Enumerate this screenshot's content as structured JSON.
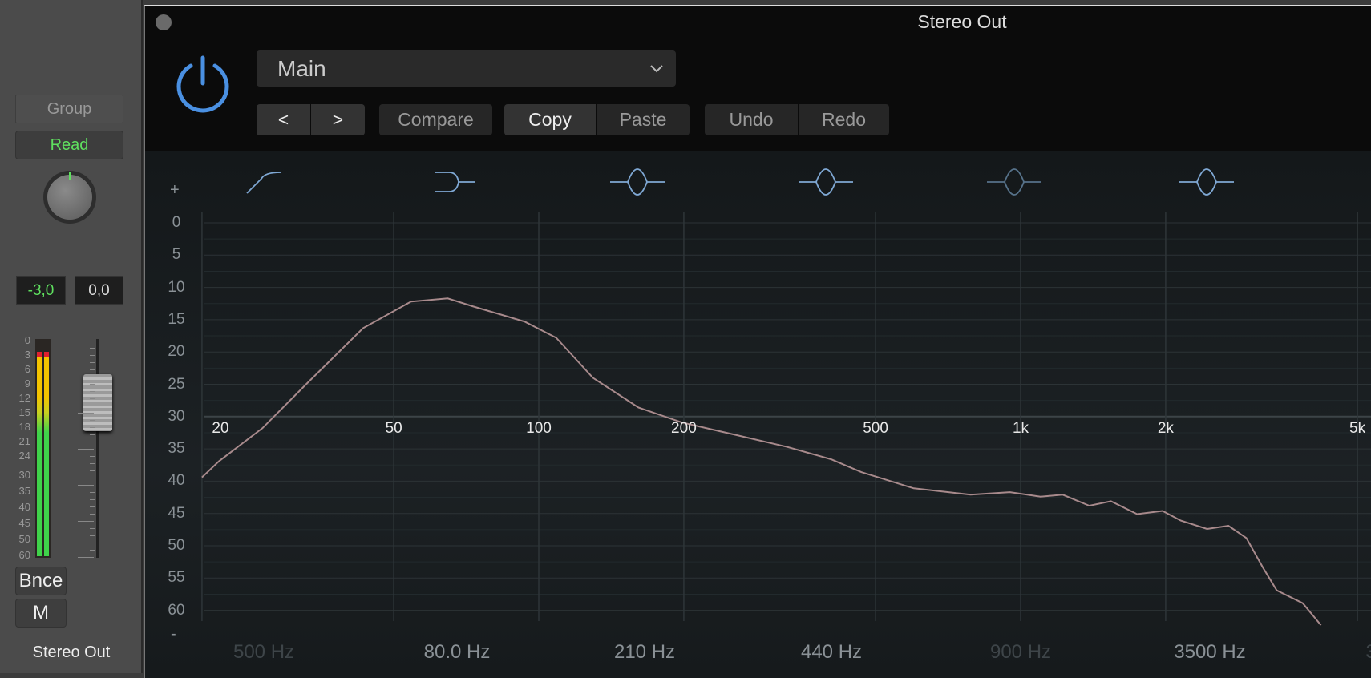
{
  "channel_strip": {
    "group_label": "Group",
    "automation_label": "Read",
    "pan_value": "-3,0",
    "volume_value": "0,0",
    "meter_scale": [
      "0",
      "3",
      "6",
      "9",
      "12",
      "15",
      "18",
      "21",
      "24",
      "30",
      "35",
      "40",
      "45",
      "50",
      "60"
    ],
    "bounce_label": "Bnce",
    "mute_label": "M",
    "channel_name": "Stereo Out",
    "colors": {
      "meter_green": "#3fd24a",
      "meter_yellow": "#f5c400",
      "meter_clip": "#e02030",
      "read_text": "#5fe05f"
    }
  },
  "plugin": {
    "window_title": "Stereo Out",
    "power_icon": "power-icon",
    "power_color": "#4a90e2",
    "preset": "Main",
    "buttons": {
      "prev": "<",
      "next": ">",
      "compare": "Compare",
      "copy": "Copy",
      "paste": "Paste",
      "undo": "Undo",
      "redo": "Redo"
    },
    "band_icons": [
      "high-pass-icon",
      "low-shelf-icon",
      "bell-icon",
      "bell-icon",
      "bell-icon",
      "bell-icon"
    ],
    "plus_label": "+",
    "minus_label": "-",
    "band_freqs": [
      {
        "label": "500 Hz",
        "dim": true
      },
      {
        "label": "80.0 Hz",
        "dim": false
      },
      {
        "label": "210 Hz",
        "dim": false
      },
      {
        "label": "440 Hz",
        "dim": false
      },
      {
        "label": "900 Hz",
        "dim": true
      },
      {
        "label": "3500 Hz",
        "dim": false
      },
      {
        "label": "3",
        "dim": true
      }
    ]
  },
  "chart_data": {
    "type": "line",
    "x_scale": "log",
    "x_ticks": [
      20,
      50,
      100,
      200,
      500,
      1000,
      2000,
      5000
    ],
    "x_tick_labels": [
      "20",
      "50",
      "100",
      "200",
      "500",
      "1k",
      "2k",
      "5k"
    ],
    "y_ticks": [
      0,
      5,
      10,
      15,
      20,
      25,
      30,
      35,
      40,
      45,
      50,
      55,
      60
    ],
    "y_tick_labels": [
      "0",
      "5",
      "10",
      "15",
      "20",
      "25",
      "30",
      "35",
      "40",
      "45",
      "50",
      "55",
      "60"
    ],
    "y_inverted": true,
    "ylim": [
      0,
      63
    ],
    "xlim": [
      19,
      5500
    ],
    "grid": true,
    "line_color": "#a88a8c",
    "x": [
      20,
      21.7,
      26.7,
      32.9,
      43.2,
      54.3,
      64.7,
      72.8,
      93.5,
      108.7,
      129.5,
      161,
      198,
      255,
      328,
      404,
      467,
      600,
      787,
      950,
      1100,
      1223,
      1388,
      1540,
      1745,
      1970,
      2150,
      2437,
      2700,
      2940,
      3190,
      3400,
      3850,
      4200
    ],
    "y": [
      39.4,
      36.9,
      31.8,
      25,
      16.3,
      12.2,
      11.7,
      12.9,
      15.3,
      17.8,
      24,
      28.6,
      30.9,
      32.8,
      34.7,
      36.6,
      38.6,
      41.1,
      42.1,
      41.7,
      42.4,
      42.1,
      43.8,
      43.1,
      45.1,
      44.6,
      46.1,
      47.4,
      46.9,
      48.8,
      53.5,
      56.9,
      58.9,
      62.3
    ]
  }
}
